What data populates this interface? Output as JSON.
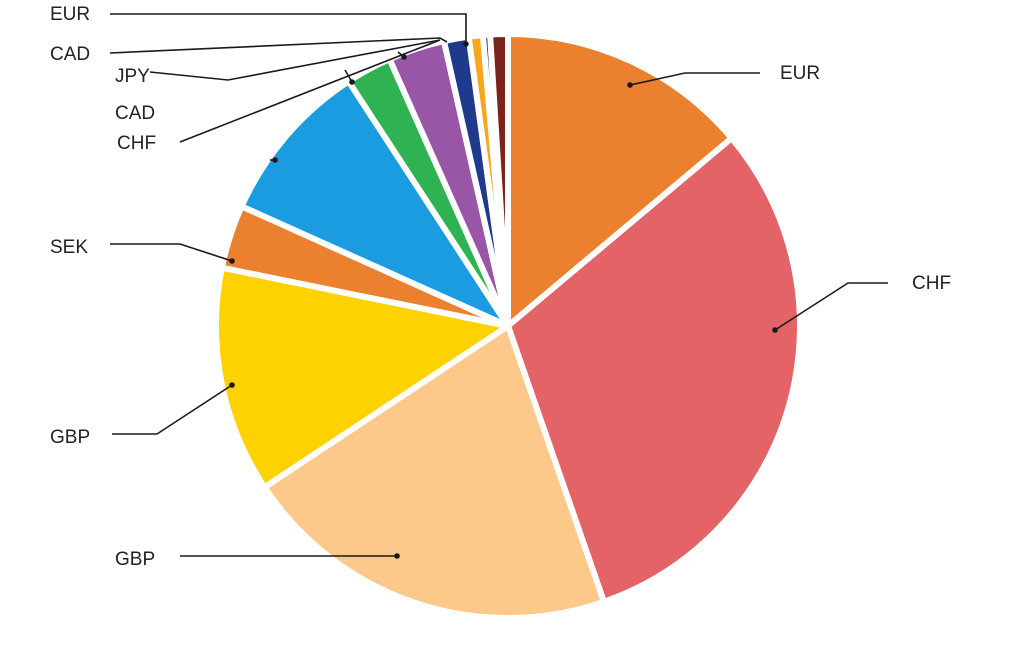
{
  "chart_data": {
    "type": "pie",
    "title": "",
    "slices": [
      {
        "label": "EUR",
        "value": 14.2,
        "color": "#EB812E"
      },
      {
        "label": "CHF",
        "value": 31.5,
        "color": "#E46367"
      },
      {
        "label": "GBP",
        "value": 21.5,
        "color": "#FDC98A"
      },
      {
        "label": "GBP",
        "value": 12.8,
        "color": "#FDD200"
      },
      {
        "label": "SEK",
        "value": 3.6,
        "color": "#EB812E"
      },
      {
        "label": "",
        "value": 9.3,
        "color": "#1C9CE0"
      },
      {
        "label": "CHF",
        "value": 2.6,
        "color": "#2FB252"
      },
      {
        "label": "CAD",
        "value": 3.2,
        "color": "#9955A6"
      },
      {
        "label": "JPY",
        "value": 1.4,
        "color": "#1F3A8C"
      },
      {
        "label": "CAD",
        "value": 0.8,
        "color": "#F8A61E"
      },
      {
        "label": "",
        "value": 0.4,
        "color": "#152A6B"
      },
      {
        "label": "EUR",
        "value": 1.0,
        "color": "#7A231C"
      }
    ],
    "legend": "none"
  }
}
